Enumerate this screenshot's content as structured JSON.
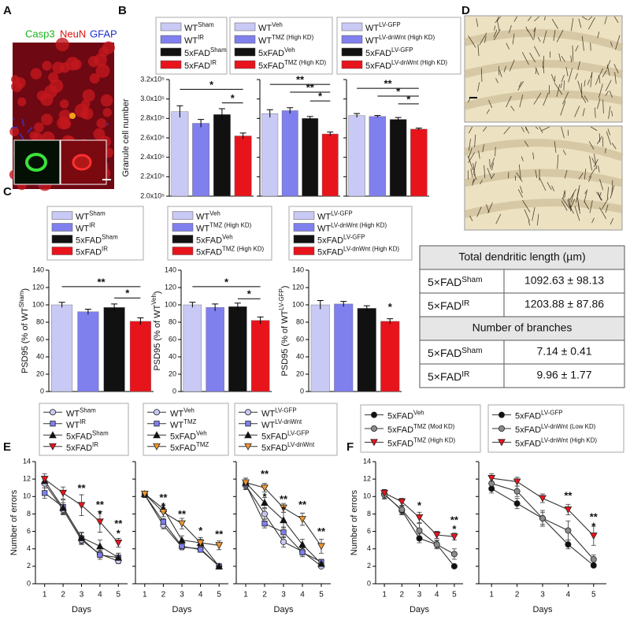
{
  "panel_labels": [
    "A",
    "B",
    "C",
    "D",
    "E",
    "F"
  ],
  "panel_a": {
    "stains": [
      "Casp3",
      "NeuN",
      "GFAP"
    ]
  },
  "table": {
    "rows": [
      {
        "header": "Total dendritic length (µm)"
      },
      {
        "group": "5×FAD",
        "superscript": "Sham",
        "value": "1092.63 ± 98.13"
      },
      {
        "group": "5×FAD",
        "superscript": "IR",
        "value": "1203.88 ± 87.86"
      },
      {
        "header": "Number of branches"
      },
      {
        "group": "5×FAD",
        "superscript": "Sham",
        "value": "7.14 ± 0.41"
      },
      {
        "group": "5×FAD",
        "superscript": "IR",
        "value": "9.96 ± 1.77"
      }
    ]
  },
  "chart_data": [
    {
      "type": "bar",
      "ylabel": "Granule cell number",
      "ylim": [
        200000,
        320000
      ],
      "ytick_labels": true,
      "yticks": [
        {
          "value": 200000,
          "label": "2.0x10⁵"
        },
        {
          "value": 220000,
          "label": "2.2x10⁵"
        },
        {
          "value": 240000,
          "label": "2.4x10⁵"
        },
        {
          "value": 260000,
          "label": "2.6x10⁵"
        },
        {
          "value": 280000,
          "label": "2.8x10⁵"
        },
        {
          "value": 300000,
          "label": "3.0x10⁵"
        },
        {
          "value": 320000,
          "label": "3.2x10⁵"
        }
      ],
      "series": [
        {
          "name": "WT",
          "superscript": "Sham",
          "color": "#c9c9f5",
          "values": [
            287000
          ],
          "errors": [
            6000
          ]
        },
        {
          "name": "WT",
          "superscript": "IR",
          "color": "#7f7fee",
          "values": [
            275000
          ],
          "errors": [
            4000
          ]
        },
        {
          "name": "5xFAD",
          "superscript": "Sham",
          "color": "#111111",
          "values": [
            284000
          ],
          "errors": [
            6000
          ]
        },
        {
          "name": "5xFAD",
          "superscript": "IR",
          "color": "#e8141c",
          "values": [
            262000
          ],
          "errors": [
            3000
          ]
        }
      ],
      "annotations": [
        "*",
        "*"
      ]
    },
    {
      "type": "bar",
      "ylim": [
        200000,
        320000
      ],
      "ytick_labels": false,
      "yticks": [
        200000,
        220000,
        240000,
        260000,
        280000,
        300000,
        320000
      ],
      "series": [
        {
          "name": "WT",
          "superscript": "Veh",
          "color": "#c9c9f5",
          "values": [
            285000
          ],
          "errors": [
            4000
          ]
        },
        {
          "name": "WT",
          "superscript": "TMZ (High KD)",
          "color": "#7f7fee",
          "values": [
            288000
          ],
          "errors": [
            3000
          ]
        },
        {
          "name": "5xFAD",
          "superscript": "Veh",
          "color": "#111111",
          "values": [
            280000
          ],
          "errors": [
            2000
          ]
        },
        {
          "name": "5xFAD",
          "superscript": "TMZ (High KD)",
          "color": "#e8141c",
          "values": [
            264000
          ],
          "errors": [
            2000
          ]
        }
      ],
      "annotations": [
        "**",
        "**",
        "*"
      ]
    },
    {
      "type": "bar",
      "ylim": [
        200000,
        320000
      ],
      "ytick_labels": false,
      "yticks": [
        200000,
        220000,
        240000,
        260000,
        280000,
        300000,
        320000
      ],
      "series": [
        {
          "name": "WT",
          "superscript": "LV-GFP",
          "color": "#c9c9f5",
          "values": [
            283000
          ],
          "errors": [
            2000
          ]
        },
        {
          "name": "WT",
          "superscript": "LV-dnWnt (High KD)",
          "color": "#7f7fee",
          "values": [
            282000
          ],
          "errors": [
            1000
          ]
        },
        {
          "name": "5xFAD",
          "superscript": "LV-GFP",
          "color": "#111111",
          "values": [
            279000
          ],
          "errors": [
            2000
          ]
        },
        {
          "name": "5xFAD",
          "superscript": "LV-dnWnt (High KD)",
          "color": "#e8141c",
          "values": [
            269000
          ],
          "errors": [
            1000
          ]
        }
      ],
      "annotations": [
        "**",
        "*",
        "*"
      ]
    },
    {
      "type": "bar",
      "ylabel": "PSD95 (% of WT",
      "ylabel_superscript": "Sham",
      "ylabel_suffix": ")",
      "ylim": [
        0,
        140
      ],
      "ytick_labels": true,
      "yticks": [
        0,
        20,
        40,
        60,
        80,
        100,
        120,
        140
      ],
      "series": [
        {
          "name": "WT",
          "superscript": "Sham",
          "color": "#c9c9f5",
          "values": [
            100
          ],
          "errors": [
            3
          ]
        },
        {
          "name": "WT",
          "superscript": "IR",
          "color": "#7f7fee",
          "values": [
            92
          ],
          "errors": [
            3
          ]
        },
        {
          "name": "5xFAD",
          "superscript": "Sham",
          "color": "#111111",
          "values": [
            97
          ],
          "errors": [
            4
          ]
        },
        {
          "name": "5xFAD",
          "superscript": "IR",
          "color": "#e8141c",
          "values": [
            81
          ],
          "errors": [
            4
          ]
        }
      ],
      "annotations": [
        "**",
        "*"
      ]
    },
    {
      "type": "bar",
      "ylabel": "PSD95 (% of WT",
      "ylabel_superscript": "Veh",
      "ylabel_suffix": ")",
      "ylim": [
        0,
        140
      ],
      "ytick_labels": true,
      "yticks": [
        0,
        20,
        40,
        60,
        80,
        100,
        120,
        140
      ],
      "series": [
        {
          "name": "WT",
          "superscript": "Veh",
          "color": "#c9c9f5",
          "values": [
            100
          ],
          "errors": [
            3
          ]
        },
        {
          "name": "WT",
          "superscript": "TMZ (High KD)",
          "color": "#7f7fee",
          "values": [
            97
          ],
          "errors": [
            4
          ]
        },
        {
          "name": "5xFAD",
          "superscript": "Veh",
          "color": "#111111",
          "values": [
            98
          ],
          "errors": [
            4
          ]
        },
        {
          "name": "5xFAD",
          "superscript": "TMZ (High KD)",
          "color": "#e8141c",
          "values": [
            82
          ],
          "errors": [
            4
          ]
        }
      ],
      "annotations": [
        "*",
        "*"
      ]
    },
    {
      "type": "bar",
      "ylabel": "PSD95 (% of WT",
      "ylabel_superscript": "LV-GFP",
      "ylabel_suffix": ")",
      "ylim": [
        0,
        140
      ],
      "ytick_labels": true,
      "yticks": [
        0,
        20,
        40,
        60,
        80,
        100,
        120,
        140
      ],
      "series": [
        {
          "name": "WT",
          "superscript": "LV-GFP",
          "color": "#c9c9f5",
          "values": [
            100
          ],
          "errors": [
            5
          ]
        },
        {
          "name": "WT",
          "superscript": "LV-dnWnt (High KD)",
          "color": "#7f7fee",
          "values": [
            101
          ],
          "errors": [
            3
          ]
        },
        {
          "name": "5xFAD",
          "superscript": "LV-GFP",
          "color": "#111111",
          "values": [
            96
          ],
          "errors": [
            3
          ]
        },
        {
          "name": "5xFAD",
          "superscript": "LV-dnWnt (High KD)",
          "color": "#e8141c",
          "values": [
            81
          ],
          "errors": [
            3
          ]
        }
      ],
      "annotations": [
        "*"
      ]
    },
    {
      "type": "line",
      "ylabel": "Number of errors",
      "xlabel": "Days",
      "x": [
        1,
        2,
        3,
        4,
        5
      ],
      "xlim": [
        0.5,
        5.5
      ],
      "xticks": [
        1,
        2,
        3,
        4,
        5
      ],
      "ylim": [
        0,
        14
      ],
      "yticks": [
        0,
        2,
        4,
        6,
        8,
        10,
        12,
        14
      ],
      "ytick_labels": true,
      "series": [
        {
          "name": "WT",
          "superscript": "Sham",
          "marker": "circle",
          "color": "#c9c9f5",
          "values": [
            11.5,
            8.5,
            5.0,
            3.4,
            2.6
          ],
          "errors": [
            0.5,
            0.6,
            0.5,
            0.4,
            0.3
          ]
        },
        {
          "name": "WT",
          "superscript": "IR",
          "marker": "square",
          "color": "#7f7fee",
          "values": [
            10.4,
            8.8,
            5.2,
            3.3,
            3.0
          ],
          "errors": [
            0.6,
            0.8,
            0.6,
            0.5,
            0.5
          ]
        },
        {
          "name": "5xFAD",
          "superscript": "Sham",
          "marker": "triangle-up",
          "color": "#111111",
          "values": [
            11.8,
            8.7,
            5.3,
            4.3,
            3.0
          ],
          "errors": [
            0.5,
            0.6,
            0.6,
            0.7,
            0.5
          ]
        },
        {
          "name": "5xFAD",
          "superscript": "IR",
          "marker": "triangle-down",
          "color": "#e8141c",
          "values": [
            12.0,
            10.4,
            9.0,
            7.1,
            4.7
          ],
          "errors": [
            0.6,
            0.7,
            1.2,
            1.2,
            0.5
          ]
        }
      ],
      "annotations": [
        "**",
        "**",
        "*",
        "**",
        "*"
      ]
    },
    {
      "type": "line",
      "xlabel": "Days",
      "x": [
        1,
        2,
        3,
        4,
        5
      ],
      "xlim": [
        0.5,
        5.5
      ],
      "xticks": [
        1,
        2,
        3,
        4,
        5
      ],
      "ylim": [
        0,
        14
      ],
      "yticks": [
        0,
        2,
        4,
        6,
        8,
        10,
        12,
        14
      ],
      "ytick_labels": false,
      "series": [
        {
          "name": "WT",
          "superscript": "Veh",
          "marker": "circle",
          "color": "#c9c9f5",
          "values": [
            10.2,
            6.7,
            4.2,
            4.0,
            2.0
          ],
          "errors": [
            0.3,
            0.4,
            0.3,
            0.3,
            0.2
          ]
        },
        {
          "name": "WT",
          "superscript": "TMZ",
          "marker": "square",
          "color": "#7f7fee",
          "values": [
            10.2,
            7.1,
            4.3,
            3.9,
            2.0
          ],
          "errors": [
            0.3,
            0.4,
            0.3,
            0.3,
            0.2
          ]
        },
        {
          "name": "5xFAD",
          "superscript": "Veh",
          "marker": "triangle-up",
          "color": "#111111",
          "values": [
            10.3,
            8.6,
            5.0,
            4.7,
            2.0
          ],
          "errors": [
            0.3,
            0.4,
            0.5,
            0.4,
            0.2
          ]
        },
        {
          "name": "5xFAD",
          "superscript": "TMZ",
          "marker": "triangle-down",
          "color": "#f0952d",
          "values": [
            10.3,
            8.2,
            6.9,
            4.7,
            4.4
          ],
          "errors": [
            0.3,
            0.5,
            0.6,
            0.6,
            0.5
          ]
        }
      ],
      "annotations": [
        "**",
        "*",
        "**",
        "*",
        "**"
      ]
    },
    {
      "type": "line",
      "xlabel": "Days",
      "x": [
        1,
        2,
        3,
        4,
        5
      ],
      "xlim": [
        0.5,
        5.5
      ],
      "xticks": [
        1,
        2,
        3,
        4,
        5
      ],
      "ylim": [
        0,
        14
      ],
      "yticks": [
        0,
        2,
        4,
        6,
        8,
        10,
        12,
        14
      ],
      "ytick_labels": false,
      "series": [
        {
          "name": "WT",
          "superscript": "LV-GFP",
          "marker": "circle",
          "color": "#c9c9f5",
          "values": [
            11.3,
            8.0,
            4.8,
            3.7,
            2.0
          ],
          "errors": [
            0.5,
            0.6,
            0.6,
            0.4,
            0.2
          ]
        },
        {
          "name": "WT",
          "superscript": "LV-dnWnt",
          "marker": "square",
          "color": "#7f7fee",
          "values": [
            11.4,
            6.9,
            5.9,
            3.6,
            2.5
          ],
          "errors": [
            0.5,
            0.5,
            0.6,
            0.5,
            0.3
          ]
        },
        {
          "name": "5xFAD",
          "superscript": "LV-GFP",
          "marker": "triangle-up",
          "color": "#111111",
          "values": [
            11.6,
            9.3,
            7.3,
            4.5,
            2.3
          ],
          "errors": [
            0.5,
            0.6,
            0.9,
            0.6,
            0.3
          ]
        },
        {
          "name": "5xFAD",
          "superscript": "LV-dnWnt",
          "marker": "triangle-down",
          "color": "#f0952d",
          "values": [
            11.6,
            11.0,
            8.7,
            7.4,
            4.3
          ],
          "errors": [
            0.5,
            0.5,
            0.5,
            0.7,
            0.8
          ]
        }
      ],
      "annotations": [
        "**",
        "*",
        "**",
        "*",
        "**",
        "**"
      ]
    },
    {
      "type": "line",
      "ylabel": "Number of errors",
      "xlabel": "Days",
      "x": [
        1,
        2,
        3,
        4,
        5
      ],
      "xlim": [
        0.5,
        5.5
      ],
      "xticks": [
        1,
        2,
        3,
        4,
        5
      ],
      "ylim": [
        0,
        14
      ],
      "yticks": [
        0,
        2,
        4,
        6,
        8,
        10,
        12,
        14
      ],
      "ytick_labels": true,
      "series": [
        {
          "name": "5xFAD",
          "superscript": "Veh",
          "marker": "circle",
          "color": "#111111",
          "values": [
            10.3,
            8.4,
            5.2,
            4.5,
            2.0
          ],
          "errors": [
            0.5,
            0.5,
            0.5,
            0.4,
            0.2
          ]
        },
        {
          "name": "5xFAD",
          "superscript": "TMZ (Mod KD)",
          "marker": "circle",
          "color": "#8c8c8c",
          "values": [
            10.2,
            8.5,
            6.1,
            4.5,
            3.4
          ],
          "errors": [
            0.5,
            0.5,
            0.8,
            0.5,
            0.6
          ]
        },
        {
          "name": "5xFAD",
          "superscript": "TMZ (High KD)",
          "marker": "triangle-down",
          "color": "#e8141c",
          "values": [
            10.4,
            9.4,
            7.6,
            5.6,
            5.4
          ],
          "errors": [
            0.4,
            0.4,
            0.6,
            0.4,
            0.4
          ]
        }
      ],
      "annotations": [
        "*",
        "**",
        "*"
      ]
    },
    {
      "type": "line",
      "xlabel": "Days",
      "x": [
        1,
        2,
        3,
        4,
        5
      ],
      "xlim": [
        0.5,
        5.5
      ],
      "xticks": [
        1,
        2,
        3,
        4,
        5
      ],
      "ylim": [
        0,
        14
      ],
      "yticks": [
        0,
        2,
        4,
        6,
        8,
        10,
        12,
        14
      ],
      "ytick_labels": false,
      "series": [
        {
          "name": "5xFAD",
          "superscript": "LV-GFP",
          "marker": "circle",
          "color": "#111111",
          "values": [
            10.9,
            9.2,
            7.5,
            4.5,
            2.1
          ],
          "errors": [
            0.5,
            0.6,
            0.7,
            0.5,
            0.2
          ]
        },
        {
          "name": "5xFAD",
          "superscript": "LV-dnWnt (Low KD)",
          "marker": "circle",
          "color": "#8c8c8c",
          "values": [
            11.5,
            10.6,
            7.5,
            6.1,
            2.8
          ],
          "errors": [
            0.7,
            0.6,
            0.9,
            1.1,
            0.5
          ]
        },
        {
          "name": "5xFAD",
          "superscript": "LV-dnWnt (High KD)",
          "marker": "triangle-down",
          "color": "#e8141c",
          "values": [
            12.1,
            11.7,
            9.8,
            8.5,
            5.5
          ],
          "errors": [
            0.5,
            0.5,
            0.5,
            0.6,
            1.1
          ]
        }
      ],
      "annotations": [
        "**",
        "**",
        "*"
      ]
    }
  ]
}
